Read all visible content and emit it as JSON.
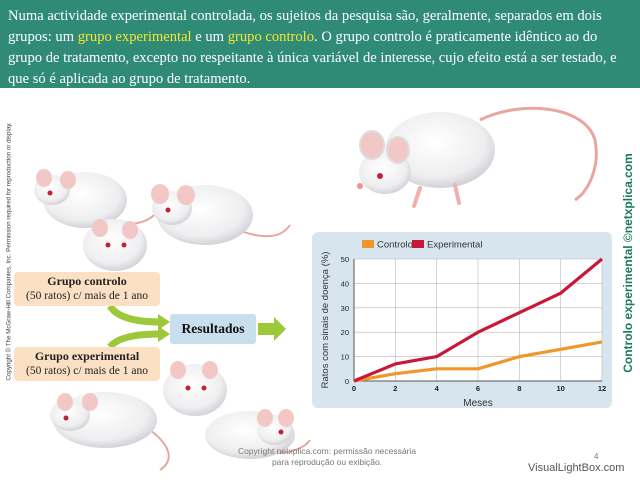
{
  "header": {
    "text_1": "Numa actividade experimental controlada, os sujeitos da pesquisa são, geralmente, separados em dois grupos: um ",
    "highlight_1": "grupo experimental",
    "text_2": " e um ",
    "highlight_2": "grupo controlo",
    "text_3": ". O grupo controlo é praticamente idêntico ao do grupo de tratamento, excepto no respeitante à única variável de interesse, cujo efeito está a ser testado, e que só é aplicada ao grupo de tratamento."
  },
  "copyright_vertical": "Copyright © The McGraw-Hill Companies, Inc. Permission required for reproduction or display.",
  "brand_vertical": "Controlo experimental ©netxplica.com",
  "diagram": {
    "control_title": "Grupo controlo",
    "control_subtitle": "(50 ratos) c/ mais de 1 ano",
    "experimental_title": "Grupo experimental",
    "experimental_subtitle": "(50 ratos) c/ mais de 1 ano",
    "result_label": "Resultados"
  },
  "footer": {
    "note": "Copyright netxplica.com: permissão necessária para reprodução ou exibição.",
    "page_number": "4",
    "watermark": "VisualLightBox.com"
  },
  "chart_data": {
    "type": "line",
    "x": [
      0,
      2,
      4,
      6,
      8,
      10,
      12
    ],
    "series": [
      {
        "name": "Controlo",
        "values": [
          0,
          3,
          5,
          5,
          10,
          13,
          16
        ],
        "color": "#f0962a"
      },
      {
        "name": "Experimental",
        "values": [
          0,
          7,
          10,
          20,
          28,
          36,
          50
        ],
        "color": "#c8183a"
      }
    ],
    "xlabel": "Meses",
    "ylabel": "Ratos com sinais de doença (%)",
    "xticks": [
      "0",
      "2",
      "4",
      "6",
      "8",
      "10",
      "12"
    ],
    "yticks": [
      "0",
      "10",
      "20",
      "30",
      "40",
      "50"
    ],
    "xlim": [
      0,
      12
    ],
    "ylim": [
      0,
      50
    ],
    "grid": true,
    "legend": "top"
  }
}
